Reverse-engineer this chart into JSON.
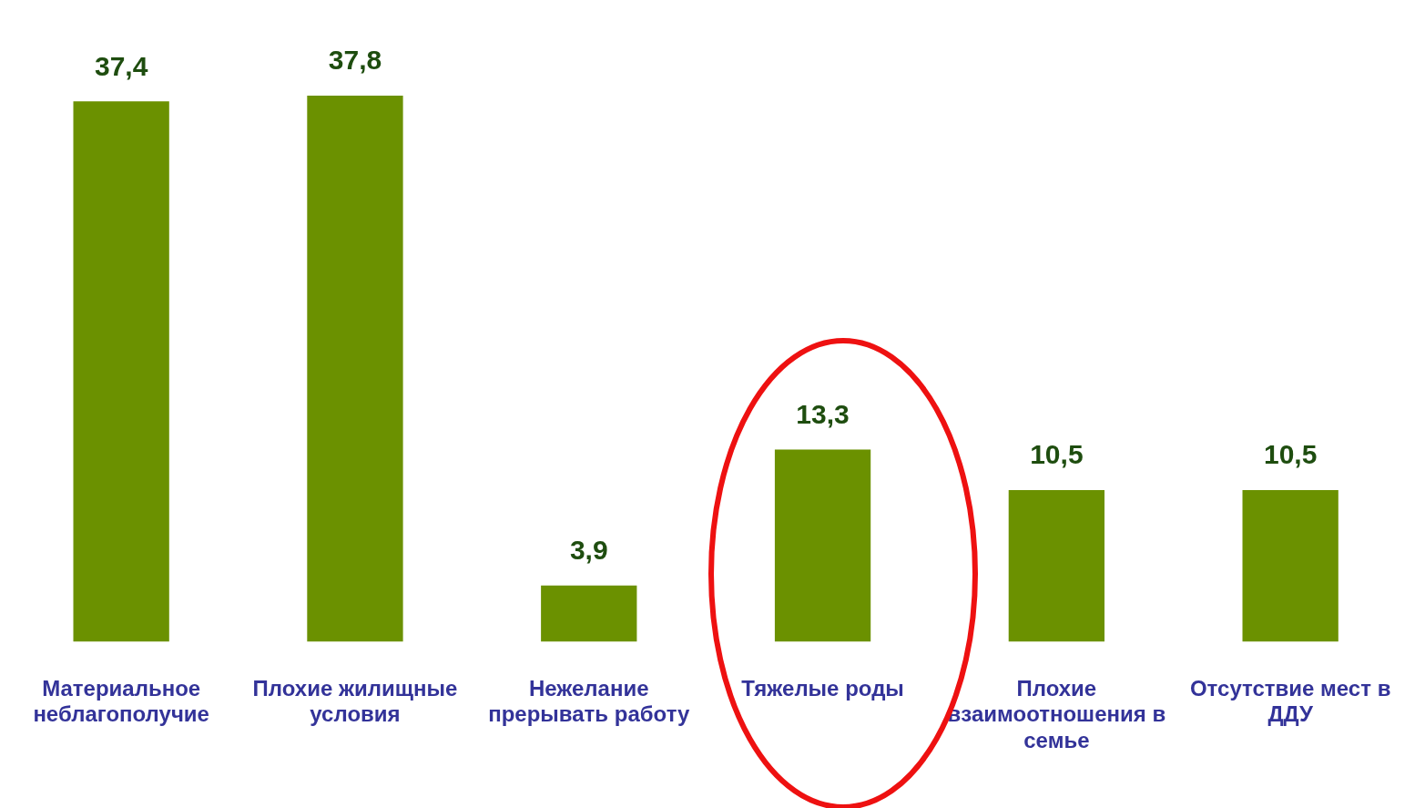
{
  "chart_data": {
    "type": "bar",
    "categories": [
      "Материальное неблагополучие",
      "Плохие жилищные условия",
      "Нежелание прерывать работу",
      "Тяжелые роды",
      "Плохие взаимоотношения в семье",
      "Отсутствие мест в ДДУ"
    ],
    "values": [
      37.4,
      37.8,
      3.9,
      13.3,
      10.5,
      10.5
    ],
    "color": "#6b9100",
    "value_labels": [
      "37,4",
      "37,8",
      "3,9",
      "13,3",
      "10,5",
      "10,5"
    ],
    "grid": false,
    "legend": false,
    "tick_labels": "x"
  }
}
